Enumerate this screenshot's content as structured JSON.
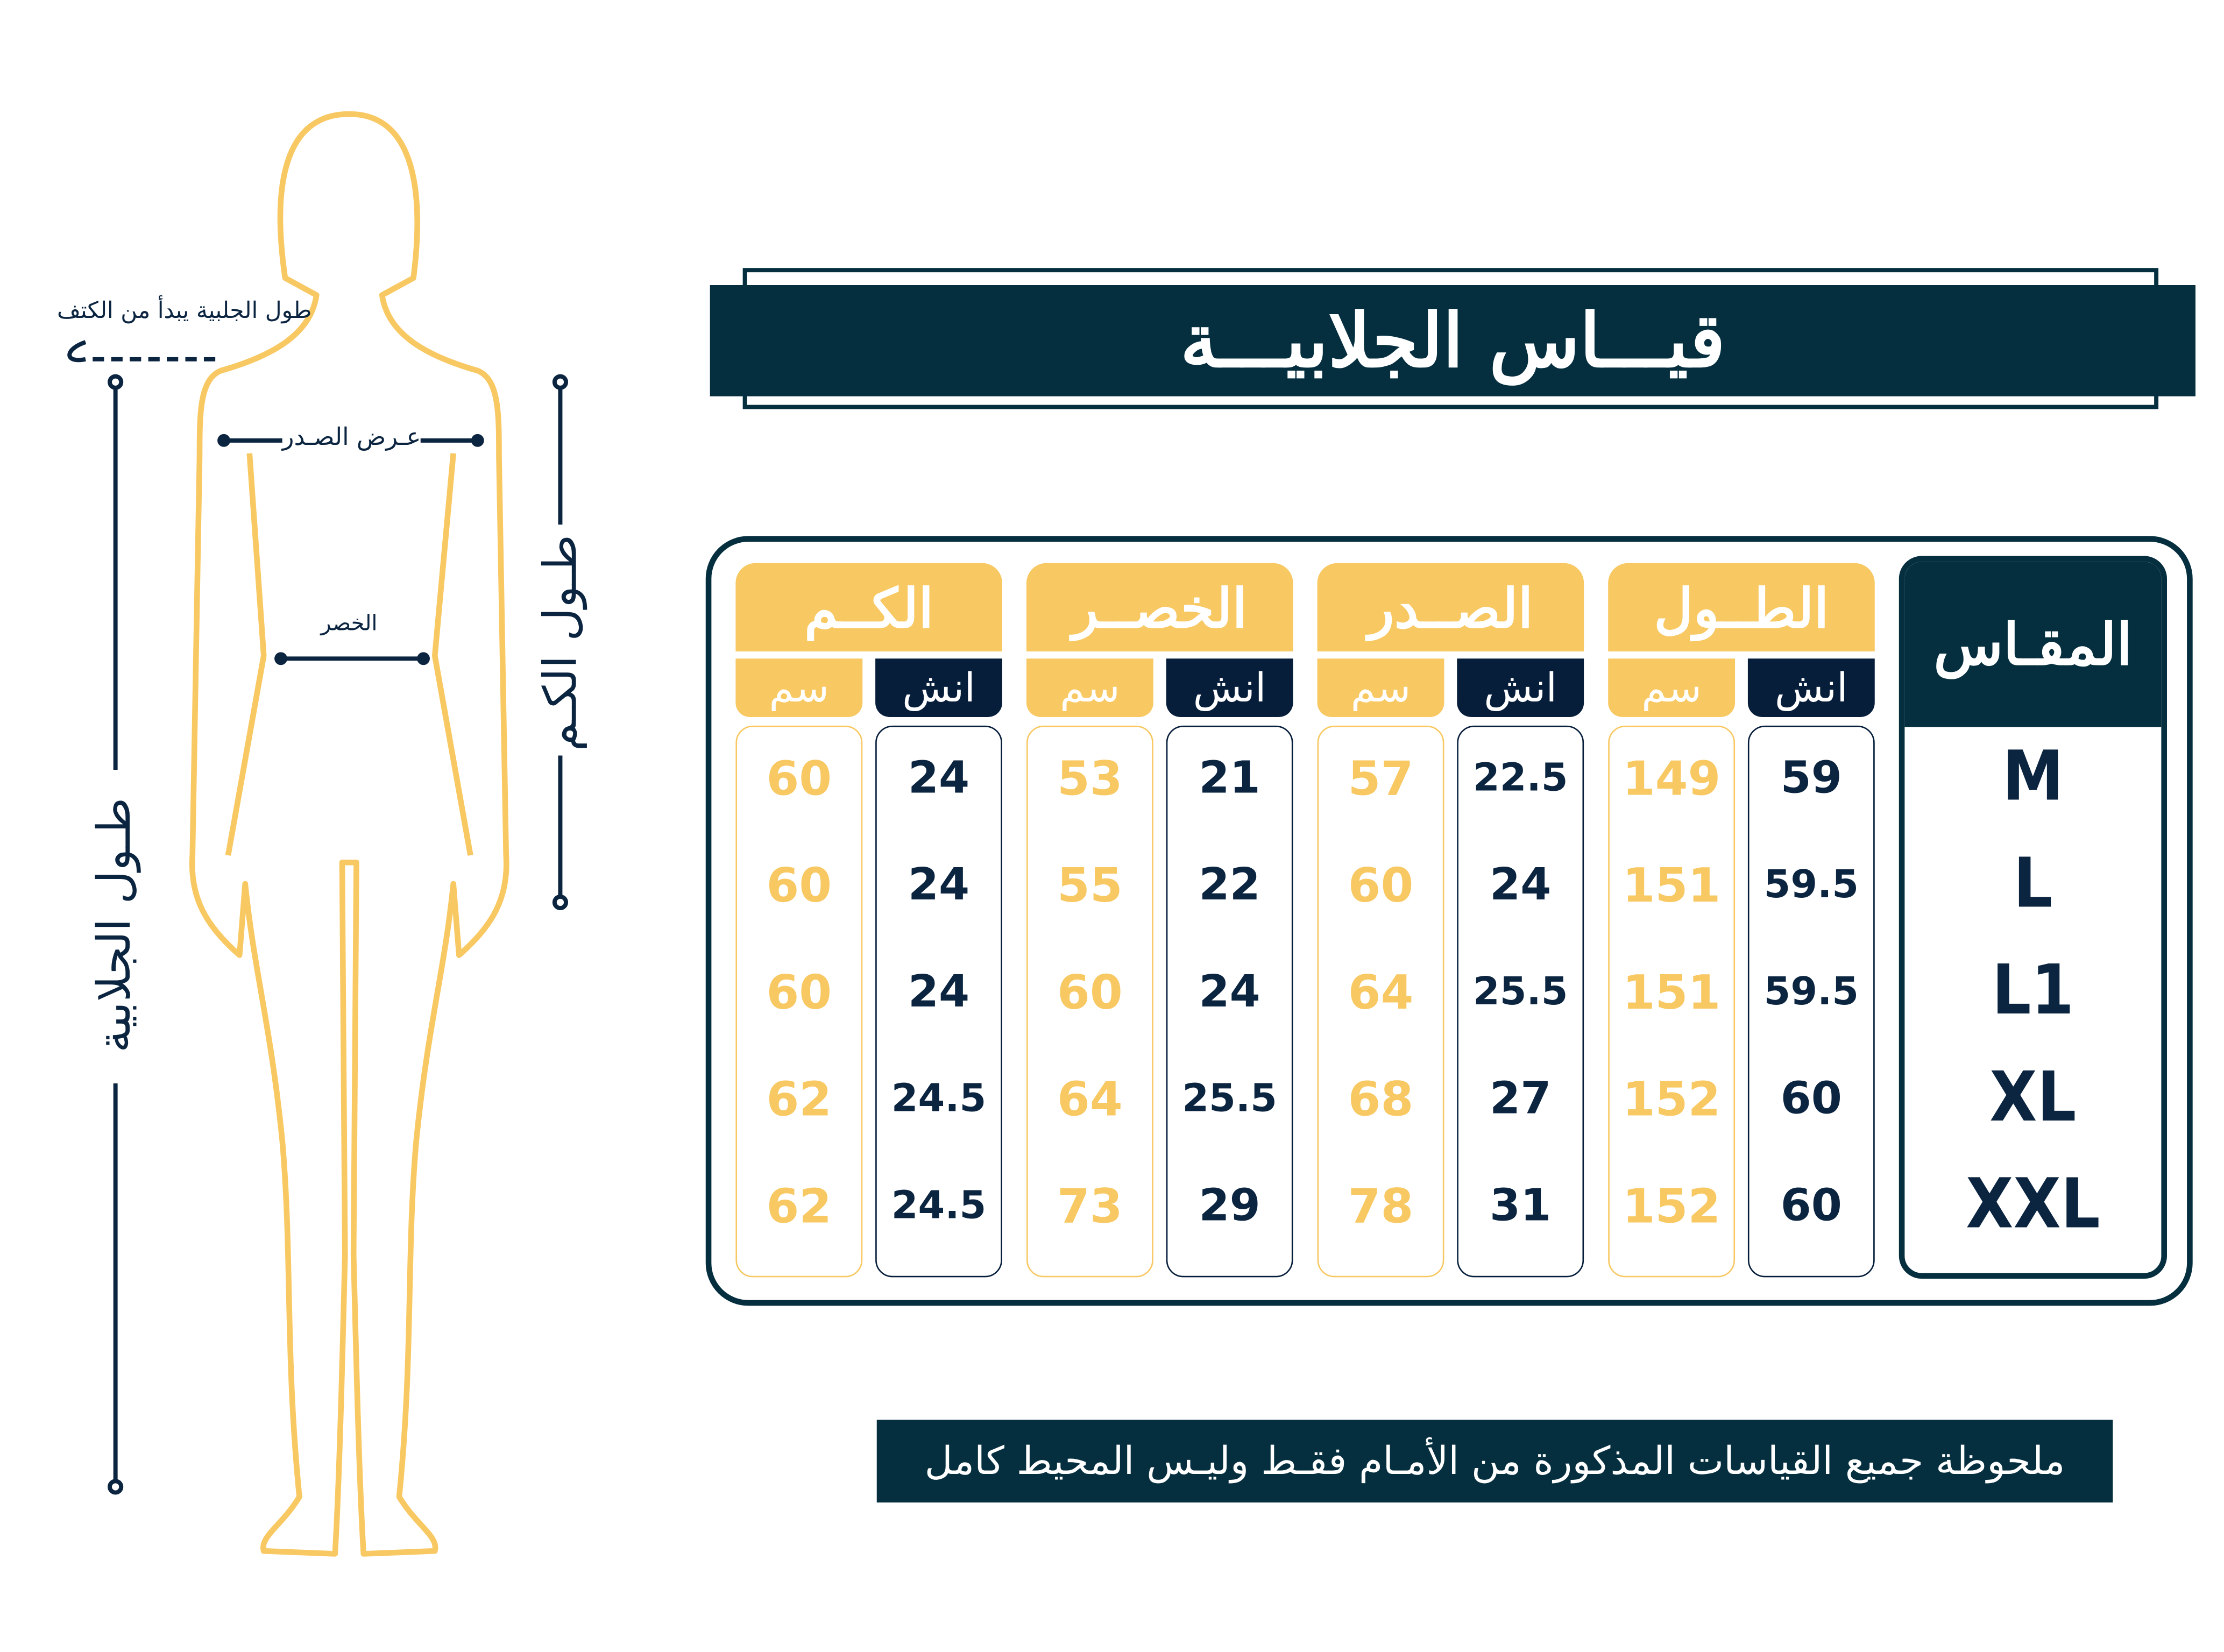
{
  "colors": {
    "navy": "#052f3f",
    "yellow": "#f8c862",
    "text_navy": "#0b2440"
  },
  "title": "قيـــاس الجلابيـــة",
  "figure": {
    "shoulder_note": "طول الجلبية يبدأ من الكتف",
    "chest_label": "عـرض الصـدر",
    "waist_label": "الخصر",
    "length_label": "طـول الجلابية",
    "sleeve_label": "طـول الكـم"
  },
  "table": {
    "size_header": "المقـاس",
    "sizes": [
      "M",
      "L",
      "L1",
      "XL",
      "XXL"
    ],
    "groups": [
      {
        "label": "الكــم",
        "cm_label": "سم",
        "inch_label": "انش",
        "cm": [
          "60",
          "60",
          "60",
          "62",
          "62"
        ],
        "inch": [
          "24",
          "24",
          "24",
          "24.5",
          "24.5"
        ]
      },
      {
        "label": "الخصــر",
        "cm_label": "سم",
        "inch_label": "انش",
        "cm": [
          "53",
          "55",
          "60",
          "64",
          "73"
        ],
        "inch": [
          "21",
          "22",
          "24",
          "25.5",
          "29"
        ]
      },
      {
        "label": "الصــدر",
        "cm_label": "سم",
        "inch_label": "انش",
        "cm": [
          "57",
          "60",
          "64",
          "68",
          "78"
        ],
        "inch": [
          "22.5",
          "24",
          "25.5",
          "27",
          "31"
        ]
      },
      {
        "label": "الطــول",
        "cm_label": "سم",
        "inch_label": "انش",
        "cm": [
          "149",
          "151",
          "151",
          "152",
          "152"
        ],
        "inch": [
          "59",
          "59.5",
          "59.5",
          "60",
          "60"
        ]
      }
    ]
  },
  "note": "ملحوظة جميع القياسات المذكورة من الأمـام فقـط وليـس المحيط كامل"
}
